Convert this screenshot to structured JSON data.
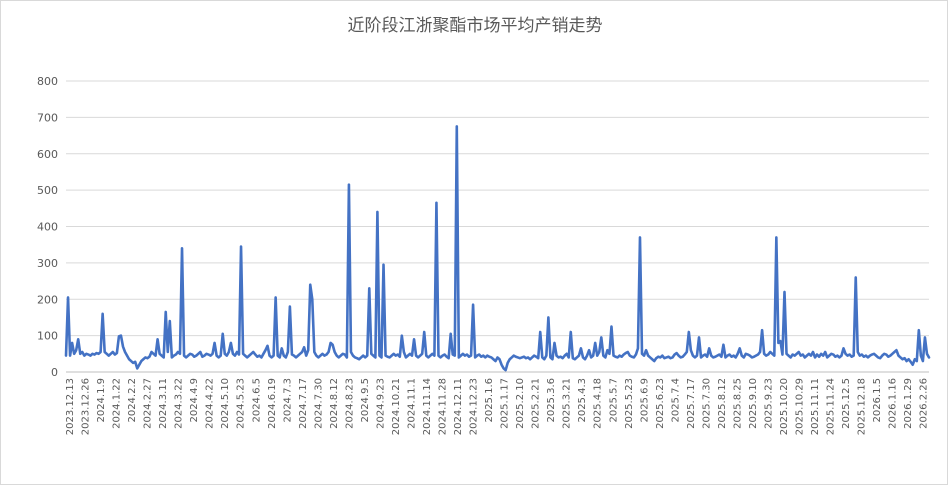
{
  "chart_data": {
    "type": "line",
    "title": "近阶段江浙聚酯市场平均产销走势",
    "xlabel": "",
    "ylabel": "",
    "ylim": [
      0,
      800
    ],
    "yticks": [
      0,
      100,
      200,
      300,
      400,
      500,
      600,
      700,
      800
    ],
    "grid": "horizontal",
    "legend": "none",
    "x_tick_labels": [
      "2023.12.13",
      "2023.12.26",
      "2024.1.9",
      "2024.1.22",
      "2024.2.2",
      "2024.2.27",
      "2024.3.11",
      "2024.3.22",
      "2024.4.9",
      "2024.4.22",
      "2024.5.10",
      "2024.5.23",
      "2024.6.5",
      "2024.6.19",
      "2024.7.3",
      "2024.7.17",
      "2024.7.30",
      "2024.8.12",
      "2024.8.23",
      "2024.9.5",
      "2024.9.23",
      "2024.10.21",
      "2024.11.1",
      "2024.11.14",
      "2024.11.28",
      "2024.12.11",
      "2024.12.23",
      "2025.1.6",
      "2025.1.17",
      "2025.2.10",
      "2025.2.21",
      "2025.3.6",
      "2025.3.21",
      "2025.4.3",
      "2025.4.18",
      "2025.5.7",
      "2025.5.23",
      "2025.6.9",
      "2025.6.23",
      "2025.7.4",
      "2025.7.17",
      "2025.7.30",
      "2025.8.12",
      "2025.8.25",
      "2025.9.10",
      "2025.9.23",
      "2025.10.20",
      "2025.10.29",
      "2025.11.11",
      "2025.11.24",
      "2025.12.5",
      "2025.12.18",
      "2026.1.5",
      "2026.1.16",
      "2026.1.29",
      "2026.2.26"
    ],
    "series": [
      {
        "color": "#4472c4",
        "values": [
          45,
          205,
          45,
          80,
          50,
          60,
          90,
          50,
          55,
          45,
          50,
          48,
          45,
          50,
          48,
          52,
          50,
          55,
          160,
          55,
          50,
          45,
          50,
          55,
          48,
          52,
          98,
          100,
          70,
          55,
          45,
          35,
          30,
          25,
          28,
          10,
          20,
          30,
          35,
          40,
          38,
          42,
          55,
          50,
          45,
          90,
          50,
          45,
          40,
          165,
          55,
          140,
          40,
          45,
          48,
          55,
          50,
          340,
          45,
          40,
          45,
          50,
          48,
          42,
          45,
          50,
          55,
          42,
          45,
          50,
          48,
          45,
          50,
          80,
          45,
          40,
          45,
          105,
          50,
          45,
          55,
          80,
          50,
          45,
          55,
          48,
          345,
          50,
          45,
          40,
          45,
          50,
          55,
          48,
          42,
          45,
          40,
          50,
          60,
          72,
          45,
          40,
          45,
          205,
          45,
          40,
          65,
          45,
          40,
          55,
          180,
          48,
          45,
          40,
          45,
          50,
          55,
          68,
          45,
          60,
          240,
          200,
          55,
          45,
          40,
          45,
          50,
          45,
          48,
          55,
          80,
          75,
          55,
          45,
          40,
          45,
          50,
          48,
          40,
          515,
          55,
          45,
          40,
          38,
          35,
          40,
          45,
          40,
          45,
          230,
          50,
          45,
          40,
          440,
          45,
          40,
          295,
          45,
          42,
          40,
          45,
          50,
          45,
          48,
          42,
          100,
          55,
          40,
          45,
          50,
          45,
          90,
          45,
          40,
          45,
          50,
          110,
          45,
          40,
          45,
          50,
          45,
          465,
          45,
          40,
          45,
          48,
          42,
          38,
          105,
          48,
          45,
          675,
          40,
          45,
          50,
          45,
          48,
          42,
          45,
          185,
          40,
          45,
          48,
          42,
          45,
          40,
          45,
          42,
          40,
          35,
          30,
          40,
          35,
          20,
          10,
          5,
          25,
          35,
          40,
          45,
          42,
          40,
          38,
          40,
          42,
          38,
          40,
          35,
          40,
          45,
          42,
          38,
          110,
          40,
          35,
          45,
          150,
          40,
          35,
          80,
          45,
          40,
          42,
          38,
          45,
          50,
          40,
          110,
          38,
          35,
          40,
          45,
          65,
          40,
          35,
          45,
          60,
          40,
          45,
          80,
          45,
          55,
          95,
          45,
          40,
          60,
          50,
          125,
          45,
          42,
          40,
          45,
          42,
          48,
          52,
          55,
          45,
          42,
          40,
          48,
          65,
          370,
          50,
          45,
          60,
          45,
          40,
          35,
          30,
          38,
          42,
          40,
          45,
          38,
          40,
          42,
          38,
          40,
          48,
          52,
          45,
          40,
          42,
          48,
          55,
          110,
          60,
          45,
          40,
          45,
          95,
          40,
          45,
          48,
          42,
          65,
          45,
          40,
          42,
          45,
          48,
          42,
          75,
          40,
          45,
          48,
          42,
          45,
          40,
          50,
          65,
          45,
          40,
          50,
          48,
          45,
          40,
          42,
          45,
          48,
          55,
          115,
          50,
          45,
          48,
          55,
          50,
          45,
          370,
          80,
          85,
          48,
          220,
          50,
          45,
          40,
          48,
          45,
          50,
          55,
          45,
          48,
          40,
          45,
          50,
          45,
          55,
          40,
          48,
          42,
          50,
          45,
          55,
          40,
          45,
          50,
          48,
          42,
          45,
          40,
          45,
          65,
          50,
          45,
          48,
          42,
          45,
          260,
          55,
          45,
          48,
          42,
          45,
          40,
          45,
          48,
          50,
          45,
          40,
          38,
          45,
          50,
          48,
          42,
          45,
          50,
          55,
          60,
          45,
          40,
          35,
          38,
          30,
          35,
          28,
          20,
          35,
          30,
          115,
          45,
          30,
          95,
          50,
          40
        ]
      }
    ]
  }
}
